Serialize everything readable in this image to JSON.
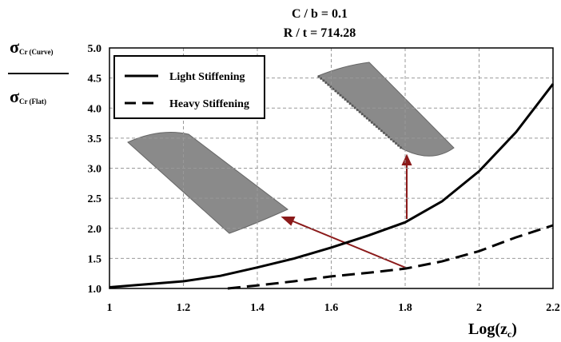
{
  "chart_data": {
    "type": "line",
    "title": [
      "C / b = 0.1",
      "R / t = 714.28"
    ],
    "y_label": {
      "numerator": {
        "symbol": "σ",
        "subscript": "Cr (Curve)"
      },
      "denominator": {
        "symbol": "σ",
        "subscript": "Cr (Flat)"
      }
    },
    "x_label": {
      "text": "Log(z",
      "subscript": "c",
      "suffix": ")"
    },
    "xlim": [
      1,
      2.2
    ],
    "xticks": [
      1,
      1.2,
      1.4,
      1.6,
      1.8,
      2,
      2.2
    ],
    "ylim": [
      1,
      5
    ],
    "yticks": [
      {
        "value": 1,
        "label": "1.0"
      },
      {
        "value": 1.5,
        "label": "1.5"
      },
      {
        "value": 2,
        "label": "2.0"
      },
      {
        "value": 2.5,
        "label": "2.5"
      },
      {
        "value": 3,
        "label": "3.0"
      },
      {
        "value": 3.5,
        "label": "3.5"
      },
      {
        "value": 4,
        "label": "4.0"
      },
      {
        "value": 4.5,
        "label": "4.5"
      },
      {
        "value": 5,
        "label": "5.0"
      }
    ],
    "grid": true,
    "legend": "upper left",
    "series": [
      {
        "name": "Light Stiffening",
        "color": "#000000",
        "dash": "solid",
        "x": [
          1,
          1.1,
          1.2,
          1.3,
          1.4,
          1.5,
          1.6,
          1.7,
          1.8,
          1.9,
          2,
          2.1,
          2.2
        ],
        "values": [
          1.02,
          1.07,
          1.12,
          1.21,
          1.35,
          1.5,
          1.68,
          1.88,
          2.1,
          2.45,
          2.95,
          3.6,
          4.4
        ]
      },
      {
        "name": "Heavy Stiffening",
        "color": "#000000",
        "dash": "dashed",
        "x": [
          1.32,
          1.4,
          1.5,
          1.6,
          1.7,
          1.8,
          1.9,
          2,
          2.1,
          2.2
        ],
        "values": [
          1,
          1.05,
          1.12,
          1.2,
          1.26,
          1.33,
          1.45,
          1.62,
          1.85,
          2.05
        ]
      }
    ]
  }
}
